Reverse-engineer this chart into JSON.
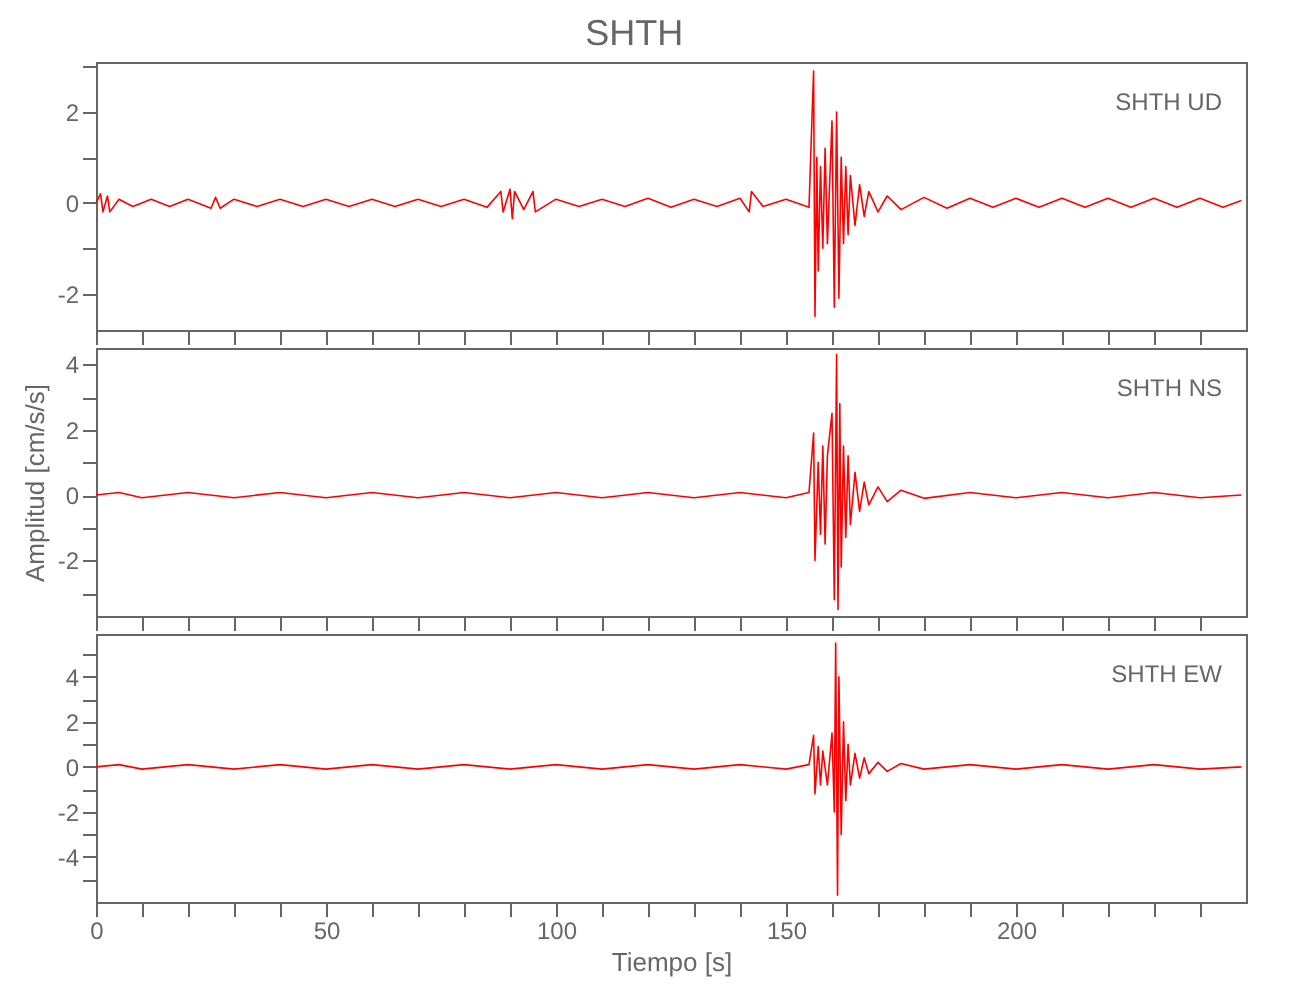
{
  "chart_data": [
    {
      "type": "line",
      "title": "SHTH",
      "annotations": [
        "SHTH   UD"
      ],
      "tick_labels": "y",
      "grid": false,
      "xlim": [
        0,
        250
      ],
      "xticks": [
        0,
        {
          "value": 10,
          "label": null
        },
        {
          "value": 20,
          "label": null
        },
        {
          "value": 30,
          "label": null
        },
        {
          "value": 40,
          "label": null
        },
        50,
        {
          "value": 60,
          "label": null
        },
        {
          "value": 70,
          "label": null
        },
        {
          "value": 80,
          "label": null
        },
        {
          "value": 90,
          "label": null
        },
        100,
        {
          "value": 110,
          "label": null
        },
        {
          "value": 120,
          "label": null
        },
        {
          "value": 130,
          "label": null
        },
        {
          "value": 140,
          "label": null
        },
        150,
        {
          "value": 160,
          "label": null
        },
        {
          "value": 170,
          "label": null
        },
        {
          "value": 180,
          "label": null
        },
        {
          "value": 190,
          "label": null
        },
        200,
        {
          "value": 210,
          "label": null
        },
        {
          "value": 220,
          "label": null
        },
        {
          "value": 230,
          "label": null
        },
        {
          "value": 240,
          "label": null
        }
      ],
      "ylim": [
        -2.8,
        3.1
      ],
      "yticks": [
        -2,
        {
          "value": -1,
          "label": null
        },
        0,
        {
          "value": 1,
          "label": null
        },
        2,
        {
          "value": 3,
          "label": null
        }
      ],
      "series": [
        {
          "color": "#ff0000",
          "x": [
            0,
            1,
            1.5,
            2.5,
            3,
            5,
            8,
            12,
            16,
            20,
            25,
            26,
            27,
            30,
            35,
            40,
            45,
            50,
            55,
            60,
            65,
            70,
            75,
            80,
            85,
            88,
            88.5,
            90,
            90.5,
            91,
            93,
            95,
            95.5,
            100,
            105,
            110,
            115,
            120,
            125,
            130,
            135,
            140,
            142,
            142.5,
            145,
            150,
            155,
            156,
            156.3,
            156.7,
            157,
            157.5,
            158,
            158.5,
            159,
            160,
            160.5,
            161,
            161.5,
            162,
            162.5,
            163,
            163.5,
            164,
            165,
            166,
            167,
            168,
            170,
            172,
            175,
            180,
            185,
            190,
            195,
            200,
            205,
            210,
            215,
            220,
            225,
            230,
            235,
            240,
            245,
            249
          ],
          "values": [
            0,
            0.2,
            -0.2,
            0.15,
            -0.2,
            0.08,
            -0.08,
            0.08,
            -0.08,
            0.08,
            -0.12,
            0.12,
            -0.12,
            0.08,
            -0.08,
            0.08,
            -0.08,
            0.08,
            -0.08,
            0.08,
            -0.08,
            0.08,
            -0.08,
            0.08,
            -0.1,
            0.25,
            -0.2,
            0.3,
            -0.35,
            0.25,
            -0.15,
            0.25,
            -0.2,
            0.08,
            -0.08,
            0.08,
            -0.08,
            0.1,
            -0.1,
            0.08,
            -0.08,
            0.1,
            -0.2,
            0.25,
            -0.08,
            0.08,
            -0.1,
            2.9,
            -2.5,
            1.0,
            -1.5,
            0.8,
            -1.0,
            1.2,
            -0.9,
            1.8,
            -2.3,
            2.0,
            -2.1,
            1.0,
            -0.9,
            0.8,
            -0.7,
            0.6,
            -0.5,
            0.4,
            -0.3,
            0.25,
            -0.2,
            0.15,
            -0.15,
            0.12,
            -0.12,
            0.1,
            -0.1,
            0.1,
            -0.1,
            0.1,
            -0.1,
            0.1,
            -0.1,
            0.1,
            -0.1,
            0.1,
            -0.1,
            0.05
          ]
        }
      ]
    },
    {
      "type": "line",
      "ylabel": "Amplitud  [cm/s/s]",
      "annotations": [
        "SHTH   NS"
      ],
      "tick_labels": "y",
      "grid": false,
      "xlim": [
        0,
        250
      ],
      "xticks": [
        0,
        {
          "value": 10,
          "label": null
        },
        {
          "value": 20,
          "label": null
        },
        {
          "value": 30,
          "label": null
        },
        {
          "value": 40,
          "label": null
        },
        50,
        {
          "value": 60,
          "label": null
        },
        {
          "value": 70,
          "label": null
        },
        {
          "value": 80,
          "label": null
        },
        {
          "value": 90,
          "label": null
        },
        100,
        {
          "value": 110,
          "label": null
        },
        {
          "value": 120,
          "label": null
        },
        {
          "value": 130,
          "label": null
        },
        {
          "value": 140,
          "label": null
        },
        150,
        {
          "value": 160,
          "label": null
        },
        {
          "value": 170,
          "label": null
        },
        {
          "value": 180,
          "label": null
        },
        {
          "value": 190,
          "label": null
        },
        200,
        {
          "value": 210,
          "label": null
        },
        {
          "value": 220,
          "label": null
        },
        {
          "value": 230,
          "label": null
        },
        {
          "value": 240,
          "label": null
        }
      ],
      "ylim": [
        -3.7,
        4.5
      ],
      "yticks": [
        {
          "value": -3,
          "label": null
        },
        -2,
        {
          "value": -1,
          "label": null
        },
        0,
        {
          "value": 1,
          "label": null
        },
        2,
        {
          "value": 3,
          "label": null
        },
        4
      ],
      "series": [
        {
          "color": "#ff0000",
          "x": [
            0,
            5,
            10,
            20,
            30,
            40,
            50,
            60,
            70,
            80,
            90,
            100,
            110,
            120,
            130,
            140,
            150,
            155,
            156,
            156.3,
            157,
            157.5,
            158,
            158.5,
            159,
            160,
            160.5,
            161,
            161.3,
            161.7,
            162,
            162.5,
            163,
            163.5,
            164,
            165,
            166,
            167,
            168,
            170,
            172,
            175,
            180,
            190,
            200,
            210,
            220,
            230,
            240,
            249
          ],
          "values": [
            0,
            0.08,
            -0.08,
            0.08,
            -0.08,
            0.08,
            -0.08,
            0.08,
            -0.08,
            0.08,
            -0.08,
            0.08,
            -0.08,
            0.08,
            -0.08,
            0.08,
            -0.08,
            0.08,
            1.9,
            -2.0,
            1.0,
            -1.2,
            1.5,
            -1.5,
            1.2,
            2.5,
            -3.2,
            4.3,
            -3.5,
            2.8,
            -2.2,
            1.5,
            -1.3,
            1.2,
            -0.9,
            0.7,
            -0.5,
            0.4,
            -0.3,
            0.25,
            -0.2,
            0.15,
            -0.1,
            0.08,
            -0.08,
            0.08,
            -0.08,
            0.08,
            -0.08,
            0
          ]
        }
      ]
    },
    {
      "type": "line",
      "xlabel": "Tiempo  [s]",
      "annotations": [
        "SHTH   EW"
      ],
      "grid": false,
      "xlim": [
        0,
        250
      ],
      "xticks": [
        0,
        {
          "value": 10,
          "label": null
        },
        {
          "value": 20,
          "label": null
        },
        {
          "value": 30,
          "label": null
        },
        {
          "value": 40,
          "label": null
        },
        50,
        {
          "value": 60,
          "label": null
        },
        {
          "value": 70,
          "label": null
        },
        {
          "value": 80,
          "label": null
        },
        {
          "value": 90,
          "label": null
        },
        100,
        {
          "value": 110,
          "label": null
        },
        {
          "value": 120,
          "label": null
        },
        {
          "value": 130,
          "label": null
        },
        {
          "value": 140,
          "label": null
        },
        150,
        {
          "value": 160,
          "label": null
        },
        {
          "value": 170,
          "label": null
        },
        {
          "value": 180,
          "label": null
        },
        {
          "value": 190,
          "label": null
        },
        200,
        {
          "value": 210,
          "label": null
        },
        {
          "value": 220,
          "label": null
        },
        {
          "value": 230,
          "label": null
        },
        {
          "value": 240,
          "label": null
        }
      ],
      "ylim": [
        -6,
        5.9
      ],
      "yticks": [
        {
          "value": -5,
          "label": null
        },
        -4,
        {
          "value": -3,
          "label": null
        },
        -2,
        {
          "value": -1,
          "label": null
        },
        0,
        {
          "value": 1,
          "label": null
        },
        2,
        {
          "value": 3,
          "label": null
        },
        4,
        {
          "value": 5,
          "label": null
        }
      ],
      "series": [
        {
          "color": "#ff0000",
          "x": [
            0,
            5,
            10,
            20,
            30,
            40,
            50,
            60,
            70,
            80,
            90,
            100,
            110,
            120,
            130,
            140,
            150,
            155,
            156,
            156.3,
            157,
            157.5,
            158,
            159,
            160,
            160.5,
            160.8,
            161.2,
            161.5,
            162,
            162.5,
            163,
            163.5,
            164,
            165,
            166,
            167,
            168,
            170,
            172,
            175,
            180,
            190,
            200,
            210,
            220,
            230,
            240,
            249
          ],
          "values": [
            0,
            0.1,
            -0.1,
            0.1,
            -0.1,
            0.1,
            -0.1,
            0.1,
            -0.1,
            0.1,
            -0.1,
            0.1,
            -0.1,
            0.1,
            -0.1,
            0.1,
            -0.1,
            0.1,
            1.4,
            -1.2,
            0.9,
            -0.8,
            0.7,
            -0.8,
            1.5,
            -2.0,
            5.5,
            -5.7,
            4.0,
            -3.0,
            2.0,
            -1.5,
            1.0,
            -0.8,
            0.6,
            -0.5,
            0.4,
            -0.3,
            0.2,
            -0.2,
            0.15,
            -0.1,
            0.1,
            -0.1,
            0.1,
            -0.1,
            0.1,
            -0.1,
            0
          ]
        }
      ]
    }
  ]
}
